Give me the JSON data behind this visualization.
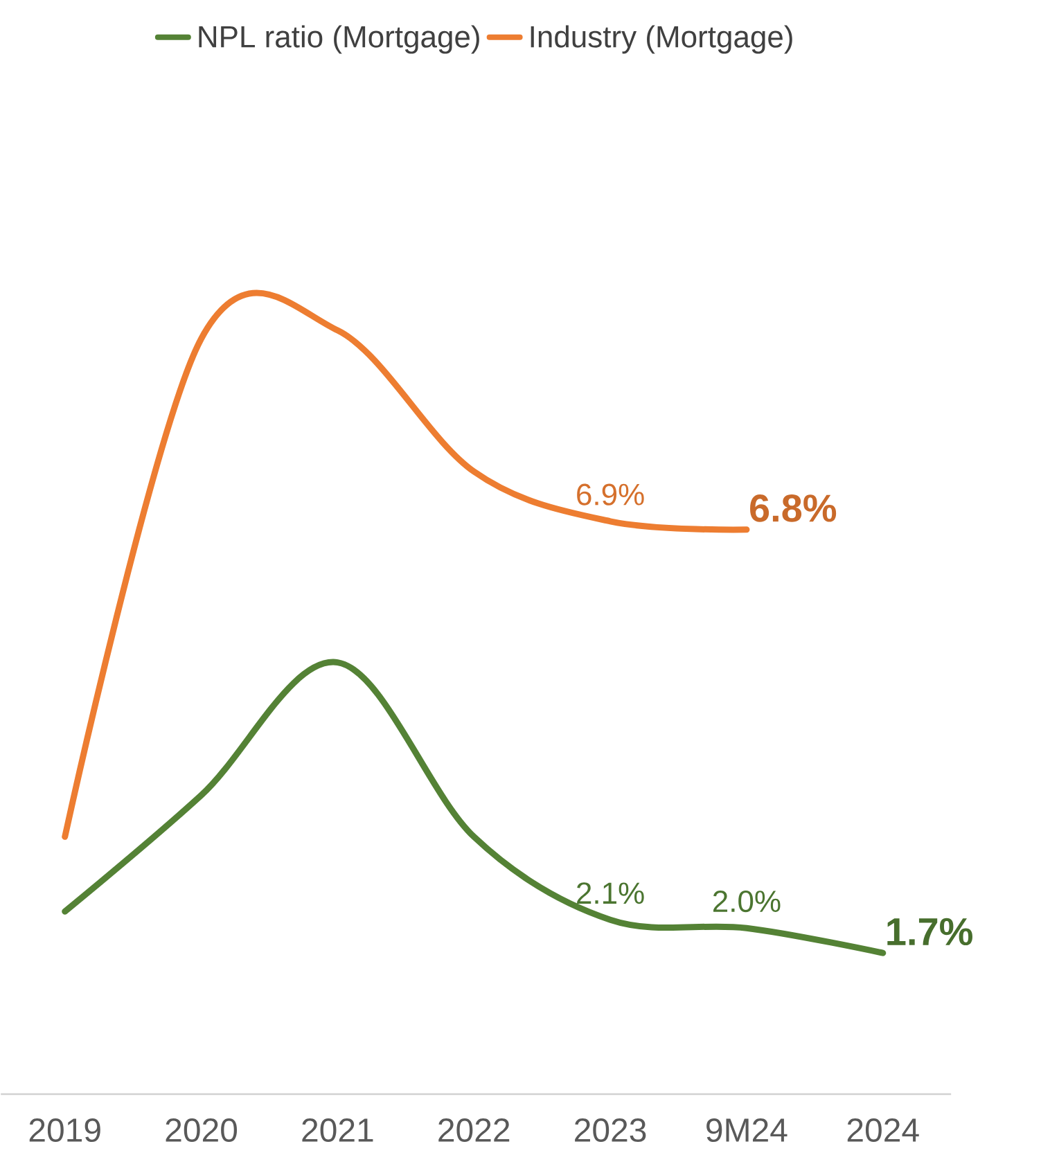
{
  "chart_data": {
    "type": "line",
    "categories": [
      "2019",
      "2020",
      "2021",
      "2022",
      "2023",
      "9M24",
      "2024"
    ],
    "legend": "top",
    "series": [
      {
        "name": "NPL ratio (Mortgage)",
        "color": "#548235",
        "values": [
          2.2,
          3.6,
          5.2,
          3.1,
          2.1,
          2.0,
          1.7
        ],
        "value_labels": [
          null,
          null,
          null,
          null,
          "2.1%",
          "2.0%",
          "1.7%"
        ]
      },
      {
        "name": "Industry (Mortgage)",
        "color": "#ed7d31",
        "values": [
          3.1,
          9.1,
          9.2,
          7.5,
          6.9,
          6.8,
          null
        ],
        "value_labels": [
          null,
          null,
          null,
          null,
          "6.9%",
          "6.8%",
          null
        ]
      }
    ]
  }
}
